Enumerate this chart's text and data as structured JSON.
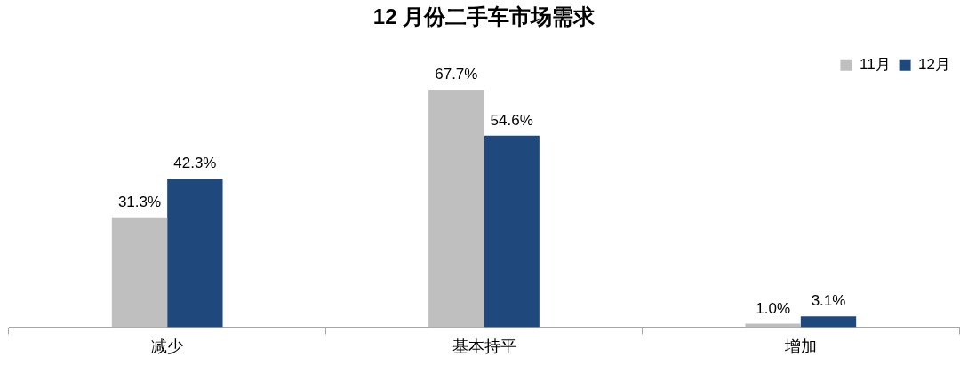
{
  "chart_data": {
    "type": "bar",
    "title": "12 月份二手车市场需求",
    "categories": [
      "减少",
      "基本持平",
      "增加"
    ],
    "series": [
      {
        "name": "11月",
        "color": "#bfbfbf",
        "values": [
          31.3,
          67.7,
          1.0
        ],
        "value_labels": [
          "31.3%",
          "67.7%",
          "1.0%"
        ]
      },
      {
        "name": "12月",
        "color": "#1f497d",
        "values": [
          42.3,
          54.6,
          3.1
        ],
        "value_labels": [
          "42.3%",
          "54.6%",
          "3.1%"
        ]
      }
    ],
    "legend": "top right"
  }
}
